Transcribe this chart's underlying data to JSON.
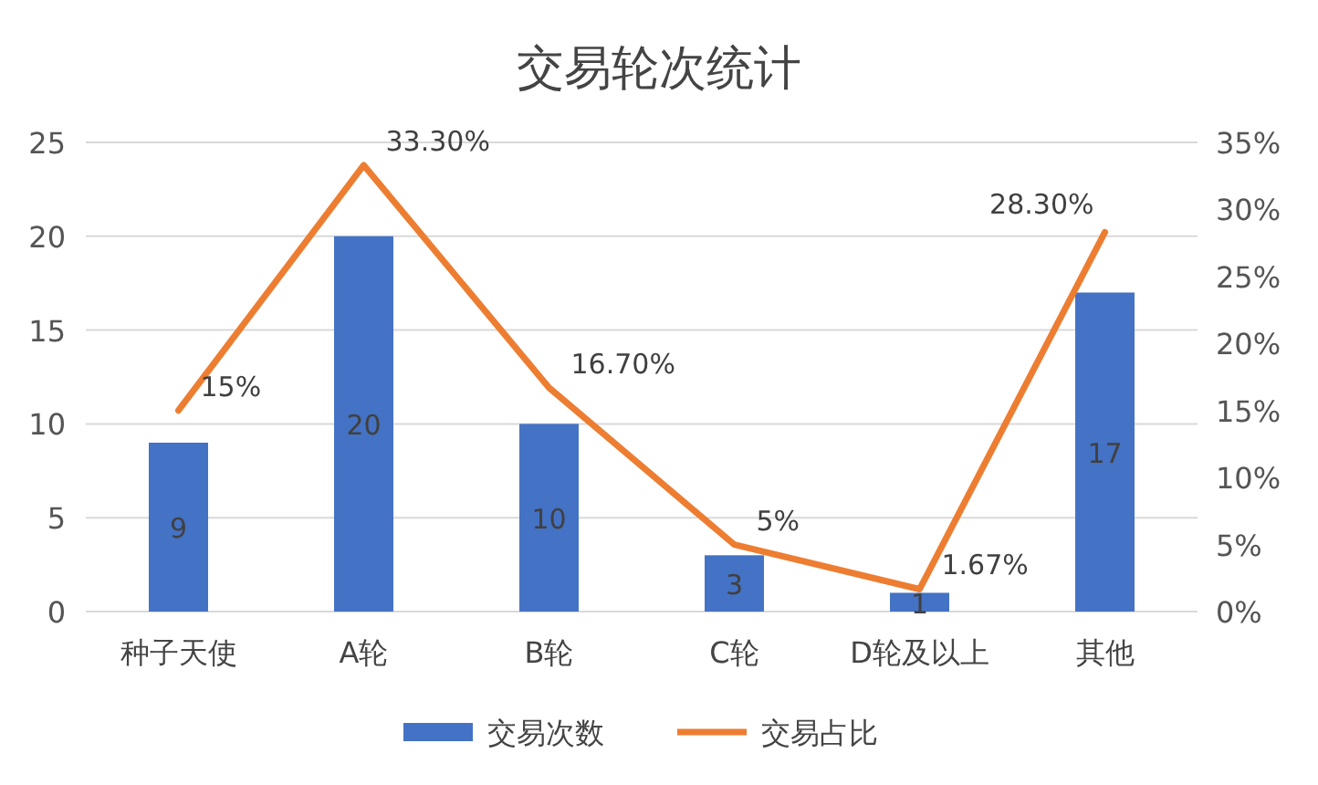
{
  "chart_data": {
    "type": "bar",
    "title": "交易轮次统计",
    "categories": [
      "种子天使",
      "A轮",
      "B轮",
      "C轮",
      "D轮及以上",
      "其他"
    ],
    "series": [
      {
        "name": "交易次数",
        "color": "#4472c4",
        "values": [
          9,
          20,
          10,
          3,
          1,
          17
        ],
        "value_labels": [
          "9",
          "20",
          "10",
          "3",
          "1",
          "17"
        ]
      },
      {
        "name": "交易占比",
        "type": "line",
        "axis": "y2",
        "color": "#ed7d31",
        "values": [
          15,
          33.3,
          16.7,
          5,
          1.67,
          28.3
        ],
        "value_labels": [
          "15%",
          "33.30%",
          "16.70%",
          "5%",
          "1.67%",
          "28.30%"
        ]
      }
    ],
    "ylim": [
      0,
      25
    ],
    "yticks": [
      0,
      5,
      10,
      15,
      20,
      25
    ],
    "y2lim": [
      0,
      35
    ],
    "y2ticks": [
      {
        "value": 0,
        "label": "0%"
      },
      {
        "value": 5,
        "label": "5%"
      },
      {
        "value": 10,
        "label": "10%"
      },
      {
        "value": 15,
        "label": "15%"
      },
      {
        "value": 20,
        "label": "20%"
      },
      {
        "value": 25,
        "label": "25%"
      },
      {
        "value": 30,
        "label": "30%"
      },
      {
        "value": 35,
        "label": "35%"
      }
    ],
    "grid": "y",
    "legend": "bottom",
    "marker": "none"
  }
}
